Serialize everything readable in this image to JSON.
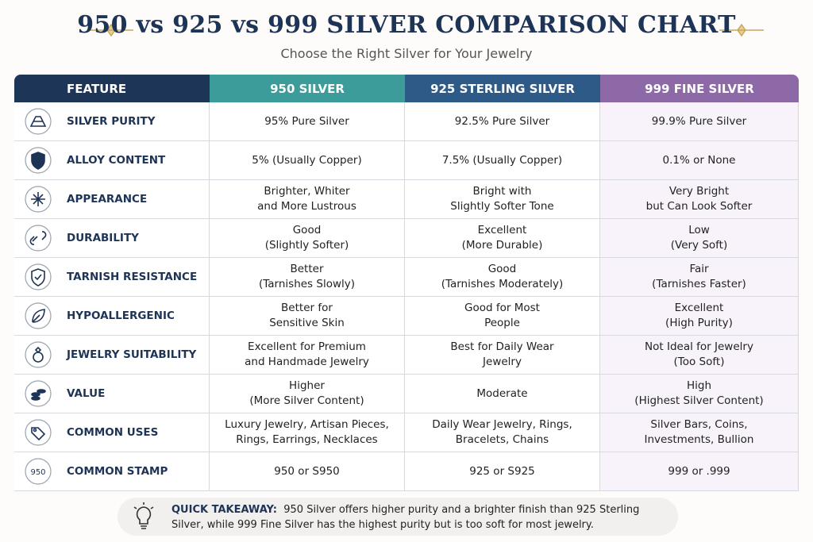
{
  "header": {
    "title": "950 vs 925 vs 999 SILVER COMPARISON CHART",
    "subtitle": "Choose the Right Silver for Your Jewelry"
  },
  "table": {
    "columns": [
      "FEATURE",
      "950 SILVER",
      "925 STERLING SILVER",
      "999 FINE SILVER"
    ],
    "rows": [
      [
        "SILVER PURITY",
        "95% Pure Silver",
        "92.5% Pure Silver",
        "99.9% Pure Silver"
      ],
      [
        "ALLOY CONTENT",
        "5% (Usually Copper)",
        "7.5% (Usually Copper)",
        "0.1% or None"
      ],
      [
        "APPEARANCE",
        "Brighter, Whiter\nand More Lustrous",
        "Bright with\nSlightly Softer Tone",
        "Very Bright\nbut Can Look Softer"
      ],
      [
        "DURABILITY",
        "Good\n(Slightly Softer)",
        "Excellent\n(More Durable)",
        "Low\n(Very Soft)"
      ],
      [
        "TARNISH RESISTANCE",
        "Better\n(Tarnishes Slowly)",
        "Good\n(Tarnishes Moderately)",
        "Fair\n(Tarnishes Faster)"
      ],
      [
        "HYPOALLERGENIC",
        "Better for\nSensitive Skin",
        "Good for Most\nPeople",
        "Excellent\n(High Purity)"
      ],
      [
        "JEWELRY SUITABILITY",
        "Excellent for Premium\nand Handmade Jewelry",
        "Best for Daily Wear\nJewelry",
        "Not Ideal for Jewelry\n(Too Soft)"
      ],
      [
        "VALUE",
        "Higher\n(More Silver Content)",
        "Moderate",
        "High\n(Highest Silver Content)"
      ],
      [
        "COMMON USES",
        "Luxury Jewelry, Artisan Pieces,\nRings, Earrings, Necklaces",
        "Daily Wear Jewelry, Rings,\nBracelets, Chains",
        "Silver Bars, Coins,\nInvestments, Bullion"
      ],
      [
        "COMMON STAMP",
        "950 or S950",
        "925 or S925",
        "999 or .999"
      ]
    ],
    "stamp_icon": "950"
  },
  "footer": {
    "label": "QUICK TAKEAWAY:",
    "text": "950 Silver offers higher purity and a brighter finish than 925 Sterling Silver, while 999 Fine Silver has the highest purity but is too soft for most jewelry."
  }
}
